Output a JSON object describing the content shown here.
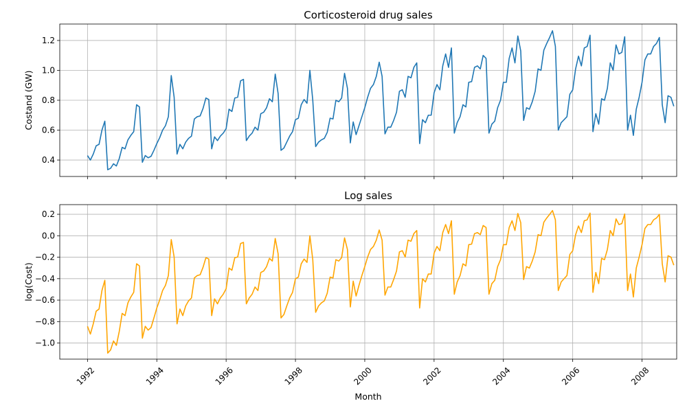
{
  "chart_data": [
    {
      "type": "line",
      "title": "Corticosteroid drug sales",
      "xlabel": "",
      "ylabel": "Costand (GW)",
      "xlim": [
        1991.2,
        2009.0
      ],
      "ylim": [
        0.29,
        1.31
      ],
      "yticks": [
        0.4,
        0.6,
        0.8,
        1.0,
        1.2
      ],
      "ytick_labels": [
        "0.4",
        "0.6",
        "0.8",
        "1.0",
        "1.2"
      ],
      "xticks": [
        1992,
        1994,
        1996,
        1998,
        2000,
        2002,
        2004,
        2006,
        2008
      ],
      "xtick_labels": [],
      "grid": true,
      "color": "#1f77b4",
      "series": [
        {
          "x_start": "1992-01",
          "x_step": "month",
          "values": [
            0.43,
            0.4,
            0.44,
            0.495,
            0.505,
            0.6,
            0.66,
            0.335,
            0.345,
            0.375,
            0.36,
            0.41,
            0.485,
            0.475,
            0.535,
            0.565,
            0.59,
            0.77,
            0.755,
            0.385,
            0.43,
            0.415,
            0.425,
            0.465,
            0.51,
            0.55,
            0.6,
            0.63,
            0.69,
            0.965,
            0.82,
            0.44,
            0.505,
            0.475,
            0.52,
            0.545,
            0.56,
            0.675,
            0.69,
            0.695,
            0.745,
            0.815,
            0.805,
            0.475,
            0.555,
            0.53,
            0.56,
            0.58,
            0.61,
            0.74,
            0.725,
            0.815,
            0.82,
            0.93,
            0.94,
            0.53,
            0.56,
            0.58,
            0.62,
            0.6,
            0.71,
            0.72,
            0.75,
            0.81,
            0.79,
            0.975,
            0.845,
            0.465,
            0.48,
            0.52,
            0.56,
            0.59,
            0.67,
            0.68,
            0.77,
            0.805,
            0.78,
            1.0,
            0.8,
            0.49,
            0.52,
            0.535,
            0.545,
            0.585,
            0.68,
            0.675,
            0.8,
            0.79,
            0.815,
            0.98,
            0.88,
            0.515,
            0.655,
            0.57,
            0.63,
            0.69,
            0.75,
            0.82,
            0.88,
            0.905,
            0.96,
            1.055,
            0.96,
            0.575,
            0.62,
            0.62,
            0.665,
            0.72,
            0.86,
            0.87,
            0.82,
            0.96,
            0.95,
            1.02,
            1.05,
            0.51,
            0.67,
            0.65,
            0.7,
            0.7,
            0.85,
            0.905,
            0.87,
            1.03,
            1.11,
            1.02,
            1.15,
            0.58,
            0.65,
            0.69,
            0.77,
            0.755,
            0.92,
            0.925,
            1.02,
            1.03,
            1.01,
            1.1,
            1.08,
            0.58,
            0.64,
            0.66,
            0.75,
            0.8,
            0.92,
            0.92,
            1.08,
            1.15,
            1.05,
            1.23,
            1.13,
            0.665,
            0.75,
            0.74,
            0.79,
            0.86,
            1.01,
            1.0,
            1.135,
            1.18,
            1.22,
            1.265,
            1.16,
            0.6,
            0.65,
            0.67,
            0.69,
            0.84,
            0.87,
            1.01,
            1.095,
            1.03,
            1.15,
            1.16,
            1.235,
            0.59,
            0.71,
            0.64,
            0.81,
            0.8,
            0.88,
            1.05,
            1.0,
            1.17,
            1.11,
            1.12,
            1.225,
            0.6,
            0.7,
            0.565,
            0.74,
            0.82,
            0.92,
            1.07,
            1.11,
            1.11,
            1.16,
            1.18,
            1.22,
            0.77,
            0.65,
            0.83,
            0.82,
            0.76
          ]
        }
      ]
    },
    {
      "type": "line",
      "title": "Log sales",
      "xlabel": "Month",
      "ylabel": "log(Cost)",
      "xlim": [
        1991.2,
        2009.0
      ],
      "ylim": [
        -1.15,
        0.29
      ],
      "yticks": [
        -1.0,
        -0.8,
        -0.6,
        -0.4,
        -0.2,
        0.0,
        0.2
      ],
      "ytick_labels": [
        "−1.0",
        "−0.8",
        "−0.6",
        "−0.4",
        "−0.2",
        "0.0",
        "0.2"
      ],
      "xticks": [
        1992,
        1994,
        1996,
        1998,
        2000,
        2002,
        2004,
        2006,
        2008
      ],
      "xtick_labels": [
        "1992",
        "1994",
        "1996",
        "1998",
        "2000",
        "2002",
        "2004",
        "2006",
        "2008"
      ],
      "grid": true,
      "color": "#ffa500",
      "series": [
        {
          "x_start": "1992-01",
          "x_step": "month",
          "transform_of_first_chart": "natural log of the sales values above",
          "values": []
        }
      ]
    }
  ]
}
